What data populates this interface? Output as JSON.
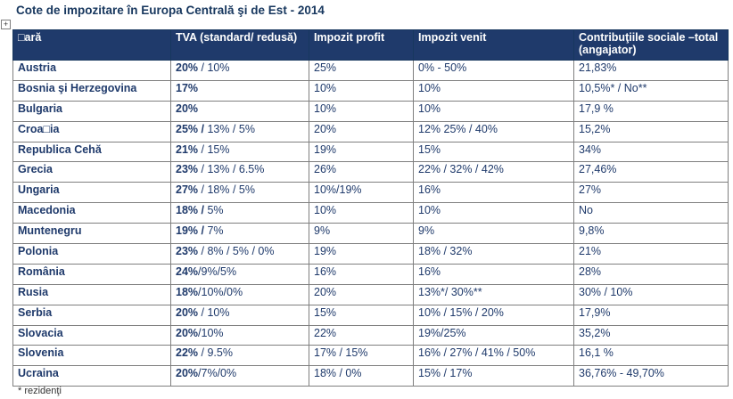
{
  "title": "Cote de impozitare în Europa Centrală şi de Est - 2014",
  "headers": [
    "□ară",
    "TVA (standard/ redusă)",
    "Impozit profit",
    "Impozit venit",
    "Contribuţiile sociale –total (angajator)"
  ],
  "rows": [
    {
      "country": "Austria",
      "vat_std": "20%",
      "vat_red": " / 10%",
      "profit": "25%",
      "income": "0% - 50%",
      "social": "21,83%"
    },
    {
      "country": "Bosnia şi Herzegovina",
      "vat_std": "17%",
      "vat_red": "",
      "profit": "10%",
      "income": "10%",
      "social": "10,5%* / No**"
    },
    {
      "country": "Bulgaria",
      "vat_std": "20%",
      "vat_red": "",
      "profit": "10%",
      "income": "10%",
      "social": "17,9 %"
    },
    {
      "country": "Croa□ia",
      "vat_std": "25% /",
      "vat_red": " 13% / 5%",
      "profit": "20%",
      "income": "12% 25% / 40%",
      "social": "15,2%"
    },
    {
      "country": "Republica Cehă",
      "vat_std": "21%",
      "vat_red": " / 15%",
      "profit": "19%",
      "income": "15%",
      "social": "34%"
    },
    {
      "country": "Grecia",
      "vat_std": "23%",
      "vat_red": " / 13% / 6.5%",
      "profit": "26%",
      "income": "22% / 32% / 42%",
      "social": "27,46%"
    },
    {
      "country": "Ungaria",
      "vat_std": "27%",
      "vat_red": " / 18% / 5%",
      "profit": "10%/19%",
      "income": "16%",
      "social": "27%"
    },
    {
      "country": "Macedonia",
      "vat_std": "18% /",
      "vat_red": " 5%",
      "profit": "10%",
      "income": "10%",
      "social": "No"
    },
    {
      "country": "Muntenegru",
      "vat_std": "19% /",
      "vat_red": " 7%",
      "profit": "9%",
      "income": "9%",
      "social": "9,8%"
    },
    {
      "country": "Polonia",
      "vat_std": "23%",
      "vat_red": " / 8% / 5% / 0%",
      "profit": "19%",
      "income": "18% / 32%",
      "social": "21%"
    },
    {
      "country": "România",
      "vat_std": "24%",
      "vat_red": "/9%/5%",
      "profit": "16%",
      "income": "16%",
      "social": "28%"
    },
    {
      "country": "Rusia",
      "vat_std": "18%",
      "vat_red": "/10%/0%",
      "profit": "20%",
      "income": "13%*/ 30%**",
      "social": "30% / 10%"
    },
    {
      "country": "Serbia",
      "vat_std": "20%",
      "vat_red": " / 10%",
      "profit": "15%",
      "income": "10% / 15% / 20%",
      "social": "17,9%"
    },
    {
      "country": "Slovacia",
      "vat_std": "20%",
      "vat_red": "/10%",
      "profit": "22%",
      "income": "19%/25%",
      "social": "35,2%"
    },
    {
      "country": "Slovenia",
      "vat_std": "22%",
      "vat_red": " / 9.5%",
      "profit": "17% / 15%",
      "income": "16% / 27% / 41% / 50%",
      "social": "16,1 %"
    },
    {
      "country": "Ucraina",
      "vat_std": "20%",
      "vat_red": "/7%/0%",
      "profit": "18% / 0%",
      "income": "15% / 17%",
      "social": "36,76% - 49,70%"
    }
  ],
  "footnote": "* rezidenţi",
  "colors": {
    "header_bg": "#1f3a6b",
    "text": "#1f3a6b",
    "border": "#7f7f7f"
  }
}
